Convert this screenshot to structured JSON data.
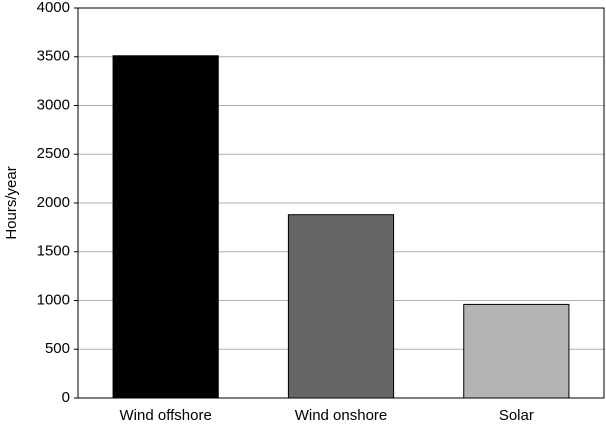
{
  "chart_data": {
    "type": "bar",
    "y_label": "Hours/year",
    "categories": [
      "Wind offshore",
      "Wind onshore",
      "Solar"
    ],
    "values": [
      3510,
      1880,
      960
    ],
    "colors": [
      "#000000",
      "#666666",
      "#b3b3b3"
    ],
    "ylim": [
      0,
      4000
    ],
    "yticks": [
      0,
      500,
      1000,
      1500,
      2000,
      2500,
      3000,
      3500,
      4000
    ],
    "grid": true
  }
}
